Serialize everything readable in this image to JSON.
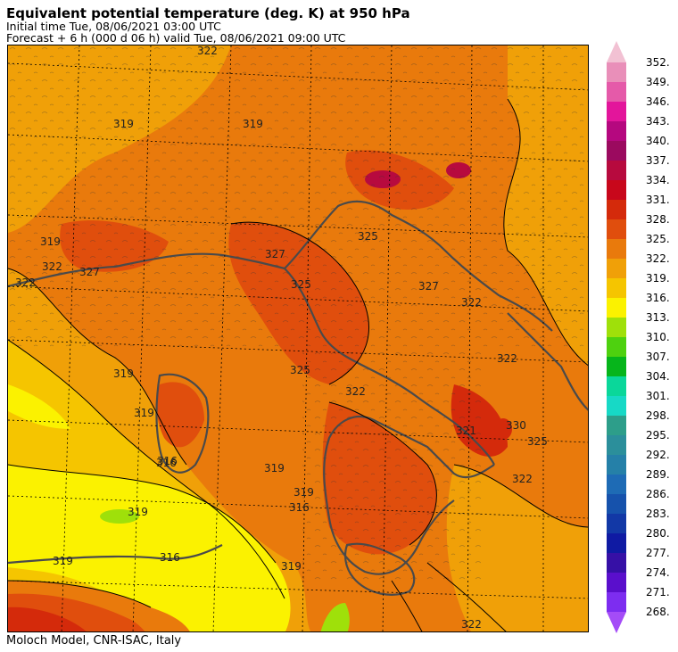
{
  "header": {
    "title": "Equivalent potential temperature (deg. K) at 950 hPa",
    "initial_time": "Initial time  Tue, 08/06/2021  03:00 UTC",
    "forecast": "Forecast  +   6 h  (000 d 06 h)  valid Tue, 08/06/2021 09:00 UTC"
  },
  "footer": {
    "credit": "Moloch Model, CNR-ISAC, Italy"
  },
  "colorbar": {
    "unit": "deg. K",
    "levels": [
      "352.",
      "349.",
      "346.",
      "343.",
      "340.",
      "337.",
      "334.",
      "331.",
      "328.",
      "325.",
      "322.",
      "319.",
      "316.",
      "313.",
      "310.",
      "307.",
      "304.",
      "301.",
      "298.",
      "295.",
      "292.",
      "289.",
      "286.",
      "283.",
      "280.",
      "277.",
      "274.",
      "271.",
      "268."
    ],
    "colors": [
      "#f2c1d3",
      "#e98fb9",
      "#e55aa9",
      "#e3159b",
      "#b5087f",
      "#9b0a5f",
      "#b70a3e",
      "#c8071b",
      "#d42a0b",
      "#e04e0d",
      "#e97a0c",
      "#f0a008",
      "#f5c500",
      "#fbf200",
      "#9fe00a",
      "#4ed10f",
      "#06b51b",
      "#0ad79a",
      "#17d9c6",
      "#2d9e8a",
      "#2b8f9b",
      "#2580a8",
      "#1e6bb5",
      "#1652ac",
      "#1238a6",
      "#0f1aa3",
      "#3610a6",
      "#5a0fcc",
      "#7d2df0",
      "#a44cf7"
    ]
  },
  "map": {
    "contour_labels": [
      "322",
      "319",
      "319",
      "319",
      "319",
      "327",
      "322",
      "316",
      "325",
      "322",
      "325",
      "325",
      "327",
      "322",
      "319",
      "319",
      "316",
      "319",
      "319",
      "316",
      "316",
      "319",
      "321",
      "330",
      "325",
      "322",
      "322",
      "327",
      "319",
      "322",
      "322"
    ]
  }
}
